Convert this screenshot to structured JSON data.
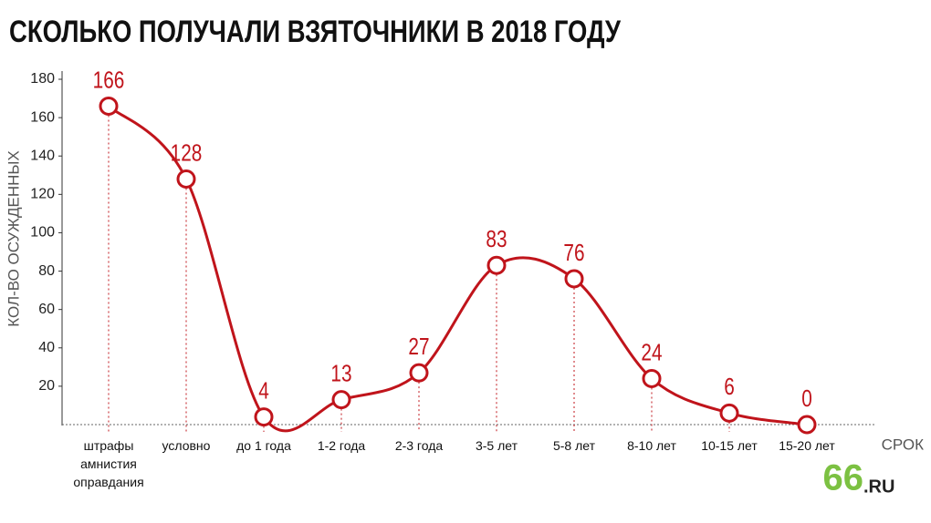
{
  "chart_data": {
    "type": "line",
    "title": "СКОЛЬКО ПОЛУЧАЛИ ВЗЯТОЧНИКИ В 2018 ГОДУ",
    "y_label": "КОЛ-ВО ОСУЖДЕННЫХ",
    "x_label": "СРОК",
    "logo": [
      "66",
      ".RU"
    ],
    "categories": [
      "штрафы\nамнистия\nоправдания",
      "условно",
      "до 1 года",
      "1-2 года",
      "2-3 года",
      "3-5 лет",
      "5-8 лет",
      "8-10 лет",
      "10-15 лет",
      "15-20 лет"
    ],
    "values": [
      166,
      128,
      4,
      13,
      27,
      83,
      76,
      24,
      6,
      0
    ],
    "color": "#c0141b",
    "ylim": [
      0,
      180
    ],
    "yticks": [
      20,
      40,
      60,
      80,
      100,
      120,
      140,
      160,
      180
    ]
  }
}
